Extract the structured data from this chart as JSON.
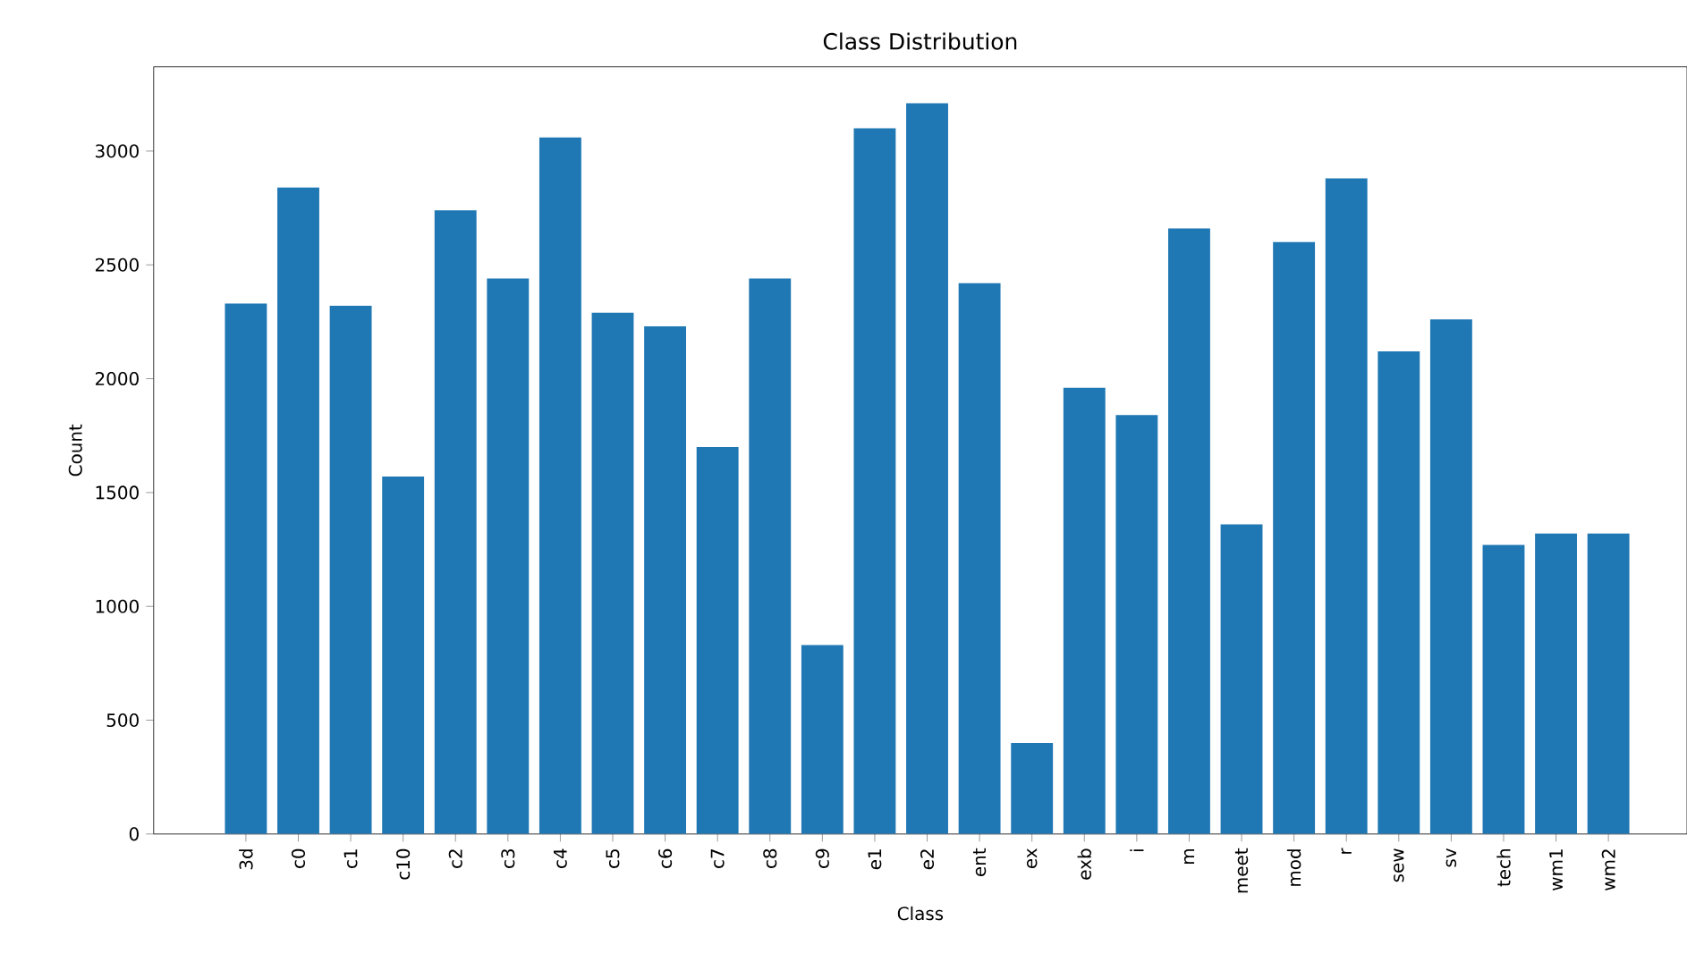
{
  "chart_data": {
    "type": "bar",
    "title": "Class Distribution",
    "xlabel": "Class",
    "ylabel": "Count",
    "categories": [
      "3d",
      "c0",
      "c1",
      "c10",
      "c2",
      "c3",
      "c4",
      "c5",
      "c6",
      "c7",
      "c8",
      "c9",
      "e1",
      "e2",
      "ent",
      "ex",
      "exb",
      "i",
      "m",
      "meet",
      "mod",
      "r",
      "sew",
      "sv",
      "tech",
      "wm1",
      "wm2"
    ],
    "values": [
      2330,
      2840,
      2320,
      1570,
      2740,
      2440,
      3060,
      2290,
      2230,
      1700,
      2440,
      830,
      3100,
      3210,
      2420,
      400,
      1960,
      1840,
      2660,
      1360,
      2600,
      2880,
      2120,
      2260,
      1270,
      1320,
      1320
    ],
    "color": "#1f77b4",
    "ylim": [
      0,
      3370
    ],
    "yticks": [
      0,
      500,
      1000,
      1500,
      2000,
      2500,
      3000
    ]
  }
}
